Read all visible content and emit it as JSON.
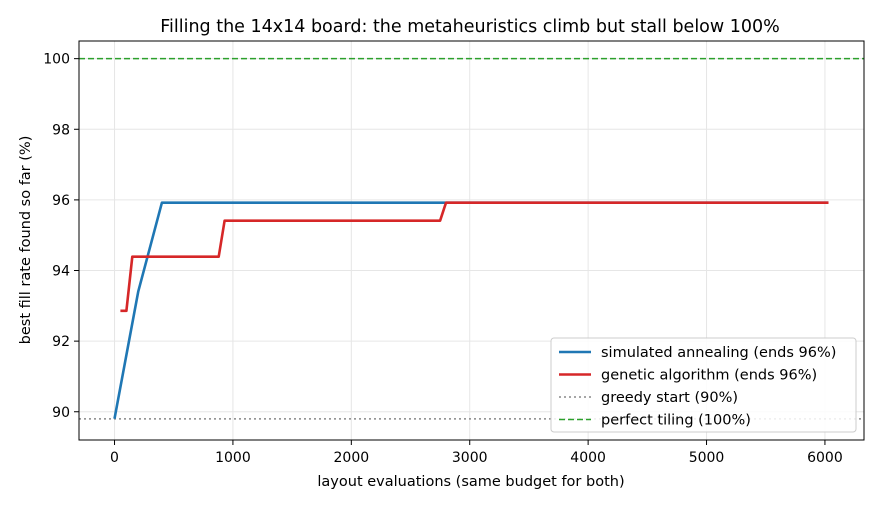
{
  "chart_data": {
    "type": "line",
    "title": "Filling the 14x14 board: the metaheuristics climb but stall below 100%",
    "xlabel": "layout evaluations (same budget for both)",
    "ylabel": "best fill rate found so far (%)",
    "xlim": [
      -300,
      6330
    ],
    "ylim": [
      89.2,
      100.5
    ],
    "xticks": [
      0,
      1000,
      2000,
      3000,
      4000,
      5000,
      6000
    ],
    "yticks": [
      90,
      92,
      94,
      96,
      98,
      100
    ],
    "grid": true,
    "legend_position": "lower-right",
    "series": [
      {
        "name": "simulated annealing (ends 96%)",
        "color": "#1f77b4",
        "style": "solid",
        "x": [
          0,
          200,
          400,
          6030
        ],
        "y": [
          89.8,
          93.4,
          95.92,
          95.92
        ]
      },
      {
        "name": "genetic algorithm (ends 96%)",
        "color": "#d62728",
        "style": "solid",
        "x": [
          50,
          100,
          150,
          880,
          930,
          2750,
          2800,
          6030
        ],
        "y": [
          92.86,
          92.86,
          94.39,
          94.39,
          95.41,
          95.41,
          95.92,
          95.92
        ]
      }
    ],
    "reference_lines": [
      {
        "name": "greedy start (90%)",
        "y": 89.8,
        "color": "#888888",
        "style": "dotted"
      },
      {
        "name": "perfect tiling (100%)",
        "y": 100,
        "color": "#2ca02c",
        "style": "dashed"
      }
    ]
  }
}
